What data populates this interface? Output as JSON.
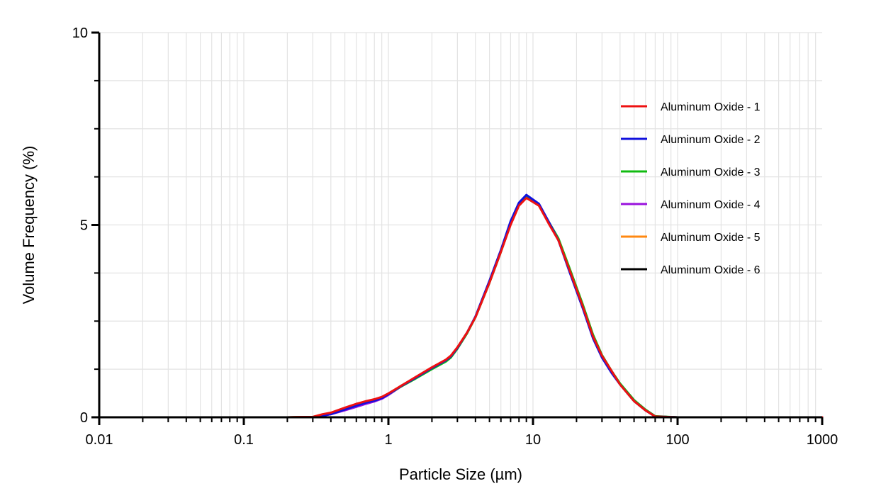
{
  "chart_data": {
    "type": "line",
    "xlabel": "Particle Size (µm)",
    "ylabel": "Volume Frequency (%)",
    "x_scale": "log",
    "xlim": [
      0.01,
      1000
    ],
    "ylim": [
      0,
      10
    ],
    "x_ticks": [
      {
        "value": 0.01,
        "label": "0.01"
      },
      {
        "value": 0.1,
        "label": "0.1"
      },
      {
        "value": 1,
        "label": "1"
      },
      {
        "value": 10,
        "label": "10"
      },
      {
        "value": 100,
        "label": "100"
      },
      {
        "value": 1000,
        "label": "1000"
      }
    ],
    "y_ticks": [
      {
        "value": 0,
        "label": "0"
      },
      {
        "value": 5,
        "label": "5"
      },
      {
        "value": 10,
        "label": "10"
      }
    ],
    "grid": true,
    "legend_position": "right",
    "x": [
      0.1,
      0.2,
      0.25,
      0.3,
      0.35,
      0.4,
      0.5,
      0.6,
      0.7,
      0.8,
      0.9,
      1.0,
      1.2,
      1.5,
      2.0,
      2.5,
      2.7,
      3.0,
      3.5,
      4.0,
      5.0,
      6.0,
      7.0,
      8.0,
      9.0,
      11.0,
      13.0,
      15.0,
      18.0,
      22.0,
      26.0,
      30.0,
      35.0,
      40.0,
      50.0,
      60.0,
      70.0,
      100.0,
      1000.0
    ],
    "series": [
      {
        "name": "Aluminum Oxide - 1",
        "color": "#ee1111",
        "values": [
          0,
          0,
          0.01,
          0.01,
          0.08,
          0.12,
          0.25,
          0.35,
          0.42,
          0.47,
          0.53,
          0.62,
          0.8,
          1.02,
          1.3,
          1.5,
          1.6,
          1.82,
          2.2,
          2.6,
          3.5,
          4.3,
          5.0,
          5.5,
          5.7,
          5.5,
          5.0,
          4.6,
          3.8,
          2.9,
          2.1,
          1.6,
          1.2,
          0.85,
          0.42,
          0.18,
          0.02,
          0,
          0
        ]
      },
      {
        "name": "Aluminum Oxide - 2",
        "color": "#1111dd",
        "values": [
          0,
          0,
          0,
          0,
          0.04,
          0.08,
          0.2,
          0.3,
          0.38,
          0.43,
          0.5,
          0.6,
          0.79,
          1.0,
          1.28,
          1.48,
          1.58,
          1.8,
          2.2,
          2.62,
          3.55,
          4.35,
          5.1,
          5.58,
          5.78,
          5.55,
          5.05,
          4.6,
          3.75,
          2.85,
          2.05,
          1.55,
          1.15,
          0.85,
          0.42,
          0.18,
          0.02,
          0,
          0
        ]
      },
      {
        "name": "Aluminum Oxide - 3",
        "color": "#11bb11",
        "values": [
          0,
          0,
          0,
          0,
          0.05,
          0.09,
          0.21,
          0.31,
          0.39,
          0.44,
          0.51,
          0.6,
          0.78,
          0.98,
          1.25,
          1.45,
          1.55,
          1.78,
          2.18,
          2.6,
          3.5,
          4.3,
          5.05,
          5.52,
          5.72,
          5.52,
          5.05,
          4.65,
          3.85,
          2.95,
          2.15,
          1.62,
          1.2,
          0.88,
          0.45,
          0.2,
          0.03,
          0,
          0
        ]
      },
      {
        "name": "Aluminum Oxide - 4",
        "color": "#9911dd",
        "values": [
          0,
          0,
          0,
          0,
          0.04,
          0.08,
          0.18,
          0.27,
          0.35,
          0.41,
          0.48,
          0.58,
          0.78,
          1.0,
          1.28,
          1.48,
          1.58,
          1.8,
          2.2,
          2.6,
          3.52,
          4.32,
          5.05,
          5.55,
          5.75,
          5.52,
          5.02,
          4.6,
          3.8,
          2.88,
          2.08,
          1.58,
          1.18,
          0.86,
          0.43,
          0.18,
          0.02,
          0,
          0
        ]
      },
      {
        "name": "Aluminum Oxide - 5",
        "color": "#ff8811",
        "values": [
          0,
          0,
          0.01,
          0.01,
          0.07,
          0.11,
          0.24,
          0.34,
          0.41,
          0.46,
          0.52,
          0.61,
          0.8,
          1.01,
          1.29,
          1.49,
          1.59,
          1.81,
          2.2,
          2.6,
          3.5,
          4.3,
          5.02,
          5.52,
          5.72,
          5.5,
          5.02,
          4.6,
          3.8,
          2.9,
          2.1,
          1.6,
          1.2,
          0.86,
          0.42,
          0.18,
          0.02,
          0,
          0
        ]
      },
      {
        "name": "Aluminum Oxide - 6",
        "color": "#000000",
        "values": [
          0,
          0,
          0.01,
          0.01,
          0.07,
          0.11,
          0.24,
          0.34,
          0.41,
          0.46,
          0.52,
          0.61,
          0.8,
          1.01,
          1.29,
          1.49,
          1.59,
          1.81,
          2.2,
          2.6,
          3.5,
          4.3,
          5.02,
          5.52,
          5.72,
          5.5,
          5.02,
          4.6,
          3.8,
          2.9,
          2.1,
          1.6,
          1.2,
          0.86,
          0.42,
          0.18,
          0.02,
          0,
          0
        ]
      }
    ]
  }
}
